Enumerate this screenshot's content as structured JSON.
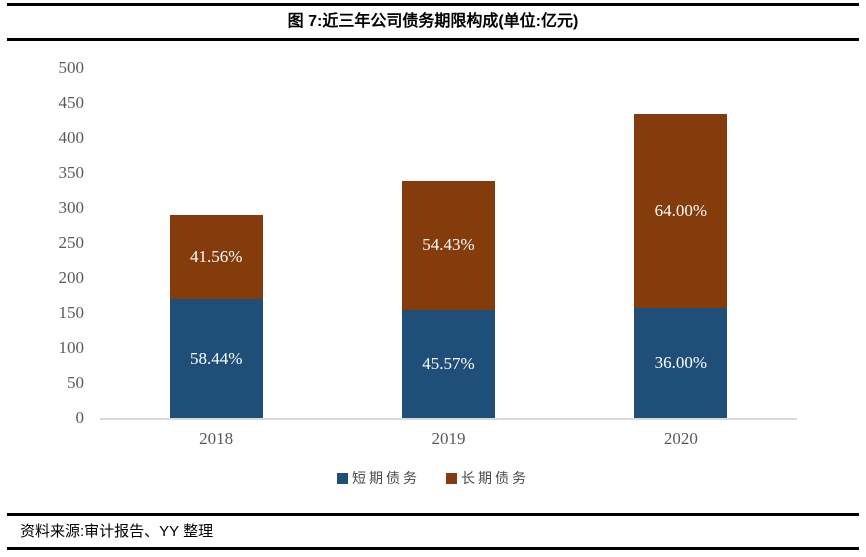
{
  "figure": {
    "title": "图 7:近三年公司债务期限构成(单位:亿元)",
    "source": "资料来源:审计报告、YY 整理"
  },
  "colors": {
    "short_term": "#1F4E79",
    "long_term": "#843C0C",
    "axis_text": "#595959",
    "baseline": "#D9D9D9",
    "rule": "#000000",
    "bar_label": "#FFFFFF"
  },
  "chart_data": {
    "type": "bar",
    "stacked": true,
    "title": "图 7:近三年公司债务期限构成(单位:亿元)",
    "unit_label": "亿元",
    "categories": [
      "2018",
      "2019",
      "2020"
    ],
    "series": [
      {
        "name": "短期债务",
        "color": "#1F4E79",
        "values": [
          169.4,
          154.5,
          156.6
        ],
        "percent_labels": [
          "58.44%",
          "45.57%",
          "36.00%"
        ]
      },
      {
        "name": "长期债务",
        "color": "#843C0C",
        "values": [
          120.4,
          184.5,
          278.4
        ],
        "percent_labels": [
          "41.56%",
          "54.43%",
          "64.00%"
        ]
      }
    ],
    "approx_totals": [
      289.8,
      339.0,
      435.0
    ],
    "ylim": [
      0,
      500
    ],
    "ytick_step": 50,
    "yticks": [
      0,
      50,
      100,
      150,
      200,
      250,
      300,
      350,
      400,
      450,
      500
    ],
    "grid": false,
    "legend_position": "bottom"
  }
}
